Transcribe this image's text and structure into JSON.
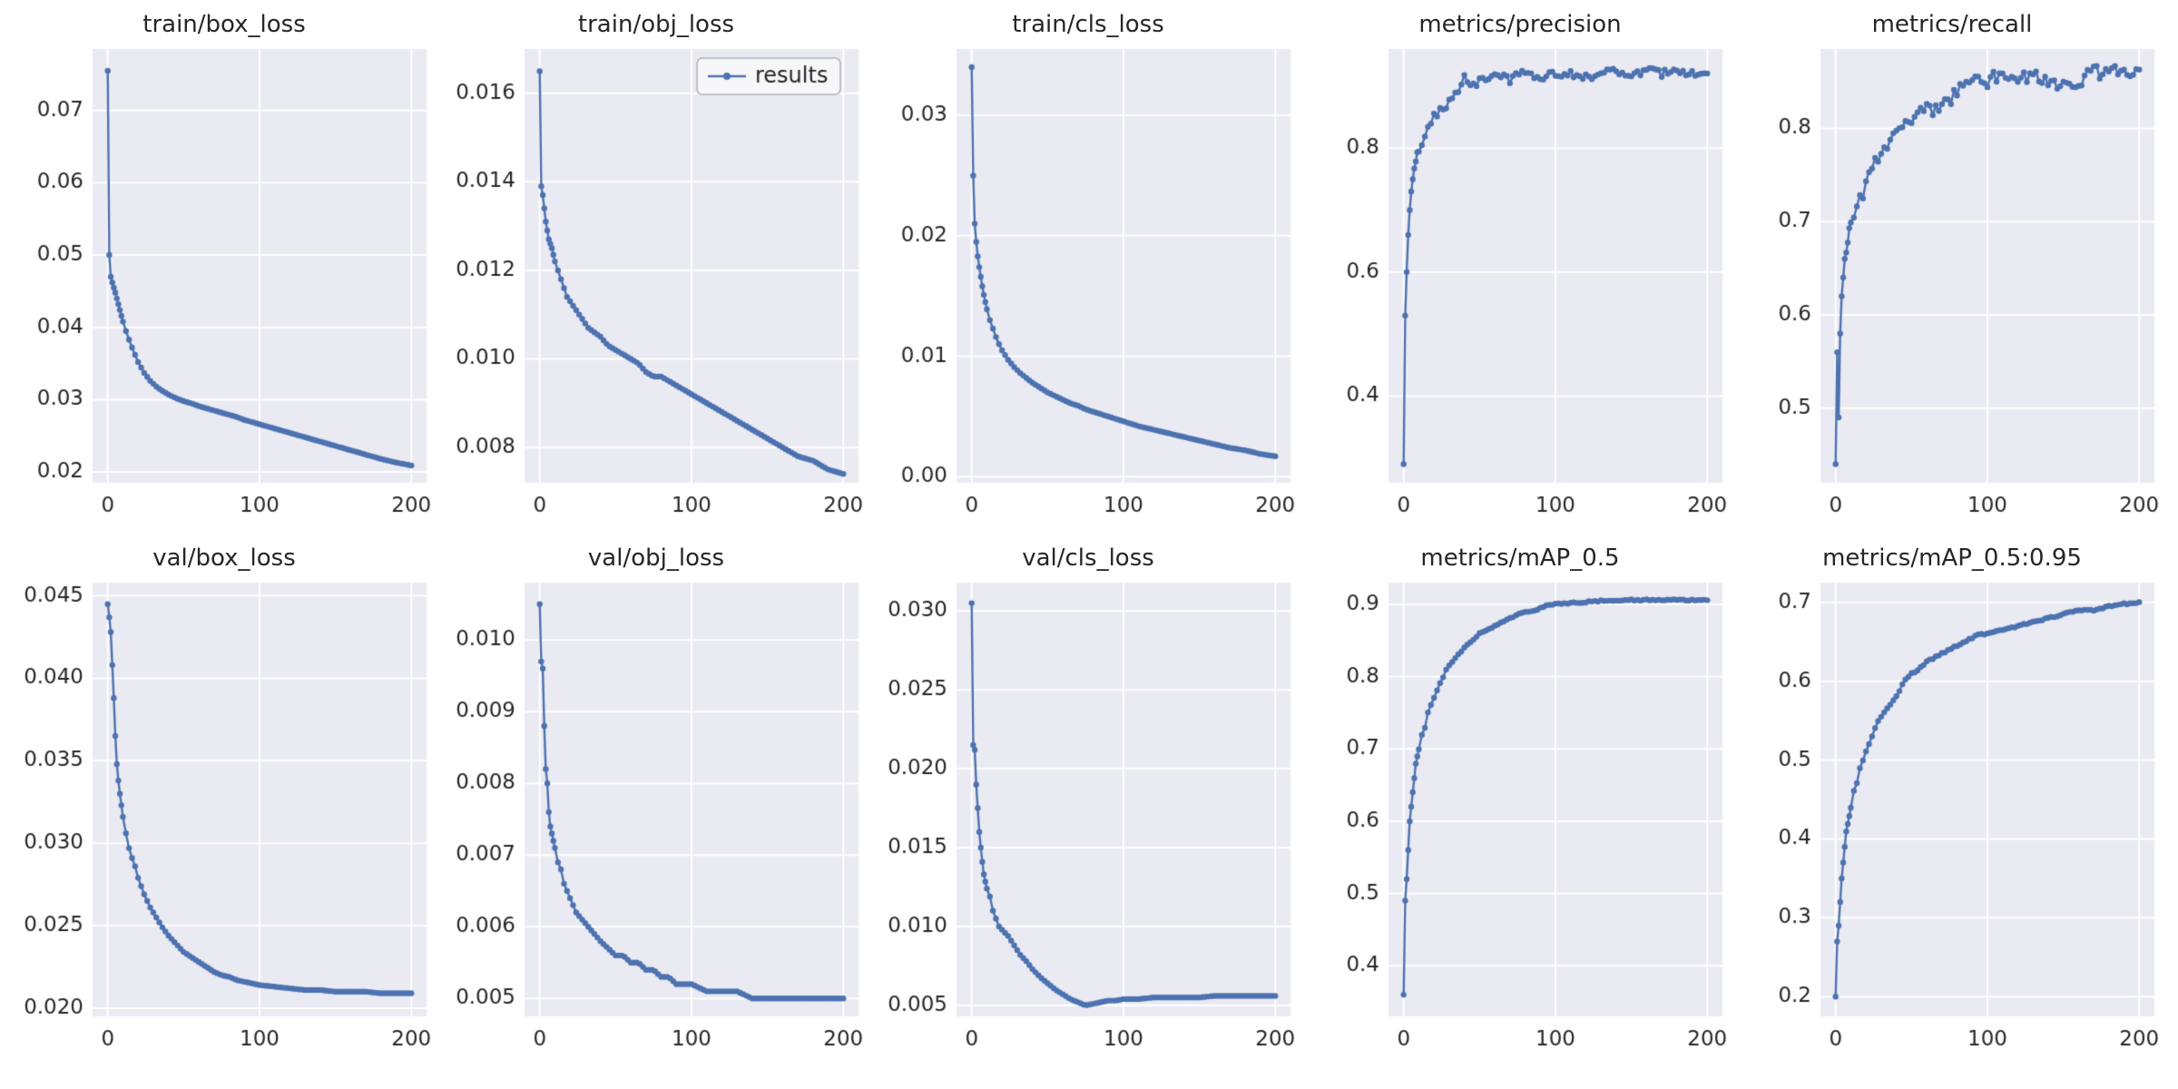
{
  "figure": {
    "background": "#ffffff",
    "axes_background": "#eaeaf2",
    "grid_color": "#ffffff",
    "line_color": "#4c72b0",
    "text_color": "#262626",
    "legend": {
      "label": "results",
      "location": "upper-right of train/obj_loss"
    }
  },
  "chart_data": {
    "type": "line",
    "layout": {
      "rows": 2,
      "cols": 5,
      "grid": true,
      "marker": "circle",
      "xlim": [
        -10,
        210
      ]
    },
    "series_name": "results",
    "xticks": [
      0,
      100,
      200
    ],
    "xtick_labels": [
      "0",
      "100",
      "200"
    ],
    "x": [
      0,
      1,
      2,
      3,
      4,
      5,
      6,
      7,
      8,
      10,
      12,
      14,
      16,
      18,
      20,
      24,
      28,
      32,
      36,
      40,
      45,
      50,
      55,
      60,
      65,
      70,
      75,
      80,
      85,
      90,
      95,
      100,
      110,
      120,
      130,
      140,
      150,
      160,
      170,
      180,
      190,
      200
    ],
    "charts": [
      {
        "title": "train/box_loss",
        "values": [
          0.0755,
          0.05,
          0.047,
          0.0462,
          0.0455,
          0.0448,
          0.044,
          0.0432,
          0.0424,
          0.0408,
          0.0395,
          0.0383,
          0.0372,
          0.0362,
          0.0352,
          0.0337,
          0.0326,
          0.0318,
          0.0312,
          0.0307,
          0.0302,
          0.0298,
          0.0295,
          0.0291,
          0.0288,
          0.0285,
          0.0282,
          0.0279,
          0.0276,
          0.0272,
          0.0269,
          0.0266,
          0.026,
          0.0254,
          0.0248,
          0.0242,
          0.0236,
          0.023,
          0.0224,
          0.0218,
          0.0213,
          0.0209
        ],
        "yticks": [
          0.02,
          0.03,
          0.04,
          0.05,
          0.06,
          0.07
        ],
        "ytick_labels": [
          "0.02",
          "0.03",
          "0.04",
          "0.05",
          "0.06",
          "0.07"
        ],
        "ylim": [
          0.0185,
          0.0785
        ],
        "jitter": 0,
        "legend": false
      },
      {
        "title": "train/obj_loss",
        "values": [
          0.0165,
          0.0139,
          0.0137,
          0.0134,
          0.0131,
          0.0129,
          0.0127,
          0.0126,
          0.0125,
          0.0122,
          0.012,
          0.0118,
          0.0116,
          0.0114,
          0.0113,
          0.0111,
          0.0109,
          0.0107,
          0.0106,
          0.0105,
          0.0103,
          0.0102,
          0.0101,
          0.01,
          0.0099,
          0.0097,
          0.0096,
          0.0096,
          0.0095,
          0.0094,
          0.0093,
          0.0092,
          0.009,
          0.0088,
          0.0086,
          0.0084,
          0.0082,
          0.008,
          0.0078,
          0.0077,
          0.0075,
          0.0074
        ],
        "yticks": [
          0.008,
          0.01,
          0.012,
          0.014,
          0.016
        ],
        "ytick_labels": [
          "0.008",
          "0.010",
          "0.012",
          "0.014",
          "0.016"
        ],
        "ylim": [
          0.0072,
          0.017
        ],
        "jitter": 0,
        "legend": true
      },
      {
        "title": "train/cls_loss",
        "values": [
          0.034,
          0.025,
          0.021,
          0.0195,
          0.0183,
          0.0174,
          0.0166,
          0.0158,
          0.0151,
          0.0139,
          0.013,
          0.0123,
          0.0116,
          0.011,
          0.0105,
          0.0097,
          0.0091,
          0.0086,
          0.0082,
          0.0078,
          0.0074,
          0.007,
          0.0067,
          0.0064,
          0.0061,
          0.0059,
          0.0056,
          0.0054,
          0.0052,
          0.005,
          0.0048,
          0.0046,
          0.0042,
          0.0039,
          0.0036,
          0.0033,
          0.003,
          0.0027,
          0.0024,
          0.0022,
          0.0019,
          0.0017
        ],
        "yticks": [
          0.0,
          0.01,
          0.02,
          0.03
        ],
        "ytick_labels": [
          "0.00",
          "0.01",
          "0.02",
          "0.03"
        ],
        "ylim": [
          -0.0005,
          0.0355
        ],
        "jitter": 0,
        "legend": false
      },
      {
        "title": "metrics/precision",
        "values": [
          0.29,
          0.53,
          0.6,
          0.66,
          0.7,
          0.73,
          0.75,
          0.77,
          0.78,
          0.8,
          0.81,
          0.82,
          0.83,
          0.84,
          0.85,
          0.86,
          0.87,
          0.88,
          0.89,
          0.92,
          0.9,
          0.91,
          0.915,
          0.92,
          0.915,
          0.91,
          0.92,
          0.92,
          0.915,
          0.91,
          0.92,
          0.92,
          0.92,
          0.915,
          0.92,
          0.925,
          0.92,
          0.925,
          0.92,
          0.925,
          0.92,
          0.92
        ],
        "yticks": [
          0.4,
          0.6,
          0.8
        ],
        "ytick_labels": [
          "0.4",
          "0.6",
          "0.8"
        ],
        "ylim": [
          0.26,
          0.96
        ],
        "jitter": 0.006,
        "legend": false
      },
      {
        "title": "metrics/recall",
        "values": [
          0.44,
          0.56,
          0.49,
          0.58,
          0.62,
          0.64,
          0.66,
          0.67,
          0.68,
          0.7,
          0.71,
          0.72,
          0.73,
          0.73,
          0.74,
          0.76,
          0.77,
          0.78,
          0.79,
          0.8,
          0.8,
          0.81,
          0.815,
          0.82,
          0.82,
          0.825,
          0.83,
          0.84,
          0.85,
          0.85,
          0.855,
          0.85,
          0.86,
          0.85,
          0.86,
          0.85,
          0.845,
          0.85,
          0.86,
          0.86,
          0.86,
          0.865
        ],
        "yticks": [
          0.5,
          0.6,
          0.7,
          0.8
        ],
        "ytick_labels": [
          "0.5",
          "0.6",
          "0.7",
          "0.8"
        ],
        "ylim": [
          0.42,
          0.885
        ],
        "jitter": 0.007,
        "legend": false
      },
      {
        "title": "val/box_loss",
        "values": [
          0.0445,
          0.0437,
          0.0428,
          0.0408,
          0.0388,
          0.0365,
          0.0348,
          0.0338,
          0.033,
          0.0316,
          0.0306,
          0.0297,
          0.0291,
          0.0286,
          0.0279,
          0.0269,
          0.0261,
          0.0255,
          0.0249,
          0.0244,
          0.0239,
          0.0234,
          0.0231,
          0.0228,
          0.0225,
          0.0222,
          0.022,
          0.0219,
          0.0217,
          0.0216,
          0.0215,
          0.0214,
          0.0213,
          0.0212,
          0.0211,
          0.0211,
          0.021,
          0.021,
          0.021,
          0.0209,
          0.0209,
          0.0209
        ],
        "yticks": [
          0.02,
          0.025,
          0.03,
          0.035,
          0.04,
          0.045
        ],
        "ytick_labels": [
          "0.020",
          "0.025",
          "0.030",
          "0.035",
          "0.040",
          "0.045"
        ],
        "ylim": [
          0.0195,
          0.0458
        ],
        "jitter": 0,
        "legend": false
      },
      {
        "title": "val/obj_loss",
        "values": [
          0.0105,
          0.0097,
          0.0096,
          0.0088,
          0.0082,
          0.008,
          0.0076,
          0.0074,
          0.0073,
          0.0071,
          0.0069,
          0.0068,
          0.0066,
          0.0065,
          0.0064,
          0.0062,
          0.0061,
          0.006,
          0.0059,
          0.0058,
          0.0057,
          0.0056,
          0.0056,
          0.0055,
          0.0055,
          0.0054,
          0.0054,
          0.0053,
          0.0053,
          0.0052,
          0.0052,
          0.0052,
          0.0051,
          0.0051,
          0.0051,
          0.005,
          0.005,
          0.005,
          0.005,
          0.005,
          0.005,
          0.005
        ],
        "yticks": [
          0.005,
          0.006,
          0.007,
          0.008,
          0.009,
          0.01
        ],
        "ytick_labels": [
          "0.005",
          "0.006",
          "0.007",
          "0.008",
          "0.009",
          "0.010"
        ],
        "ylim": [
          0.00475,
          0.0108
        ],
        "jitter": 0,
        "legend": false
      },
      {
        "title": "val/cls_loss",
        "values": [
          0.0305,
          0.0215,
          0.0212,
          0.019,
          0.0175,
          0.016,
          0.015,
          0.0141,
          0.0133,
          0.0124,
          0.0119,
          0.011,
          0.0105,
          0.01,
          0.0098,
          0.0094,
          0.0088,
          0.0082,
          0.0078,
          0.0073,
          0.0068,
          0.0064,
          0.006,
          0.0057,
          0.0054,
          0.0052,
          0.005,
          0.0051,
          0.0052,
          0.0053,
          0.0053,
          0.0054,
          0.0054,
          0.0055,
          0.0055,
          0.0055,
          0.0055,
          0.0056,
          0.0056,
          0.0056,
          0.0056,
          0.0056
        ],
        "yticks": [
          0.005,
          0.01,
          0.015,
          0.02,
          0.025,
          0.03
        ],
        "ytick_labels": [
          "0.005",
          "0.010",
          "0.015",
          "0.020",
          "0.025",
          "0.030"
        ],
        "ylim": [
          0.0043,
          0.0318
        ],
        "jitter": 0,
        "legend": false
      },
      {
        "title": "metrics/mAP_0.5",
        "values": [
          0.36,
          0.49,
          0.52,
          0.56,
          0.6,
          0.62,
          0.64,
          0.66,
          0.68,
          0.7,
          0.72,
          0.73,
          0.75,
          0.76,
          0.77,
          0.79,
          0.81,
          0.82,
          0.83,
          0.84,
          0.85,
          0.86,
          0.865,
          0.87,
          0.875,
          0.88,
          0.885,
          0.89,
          0.89,
          0.895,
          0.9,
          0.9,
          0.902,
          0.903,
          0.905,
          0.905,
          0.906,
          0.906,
          0.906,
          0.906,
          0.906,
          0.906
        ],
        "yticks": [
          0.4,
          0.5,
          0.6,
          0.7,
          0.8,
          0.9
        ],
        "ytick_labels": [
          "0.4",
          "0.5",
          "0.6",
          "0.7",
          "0.8",
          "0.9"
        ],
        "ylim": [
          0.33,
          0.93
        ],
        "jitter": 0.001,
        "legend": false
      },
      {
        "title": "metrics/mAP_0.5:0.95",
        "values": [
          0.2,
          0.27,
          0.29,
          0.32,
          0.35,
          0.37,
          0.39,
          0.41,
          0.42,
          0.44,
          0.46,
          0.47,
          0.49,
          0.5,
          0.51,
          0.53,
          0.55,
          0.56,
          0.57,
          0.58,
          0.6,
          0.61,
          0.615,
          0.625,
          0.63,
          0.635,
          0.64,
          0.645,
          0.65,
          0.655,
          0.66,
          0.66,
          0.665,
          0.67,
          0.675,
          0.68,
          0.685,
          0.69,
          0.69,
          0.695,
          0.698,
          0.7
        ],
        "yticks": [
          0.2,
          0.3,
          0.4,
          0.5,
          0.6,
          0.7
        ],
        "ytick_labels": [
          "0.2",
          "0.3",
          "0.4",
          "0.5",
          "0.6",
          "0.7"
        ],
        "ylim": [
          0.175,
          0.725
        ],
        "jitter": 0.001,
        "legend": false
      }
    ]
  }
}
